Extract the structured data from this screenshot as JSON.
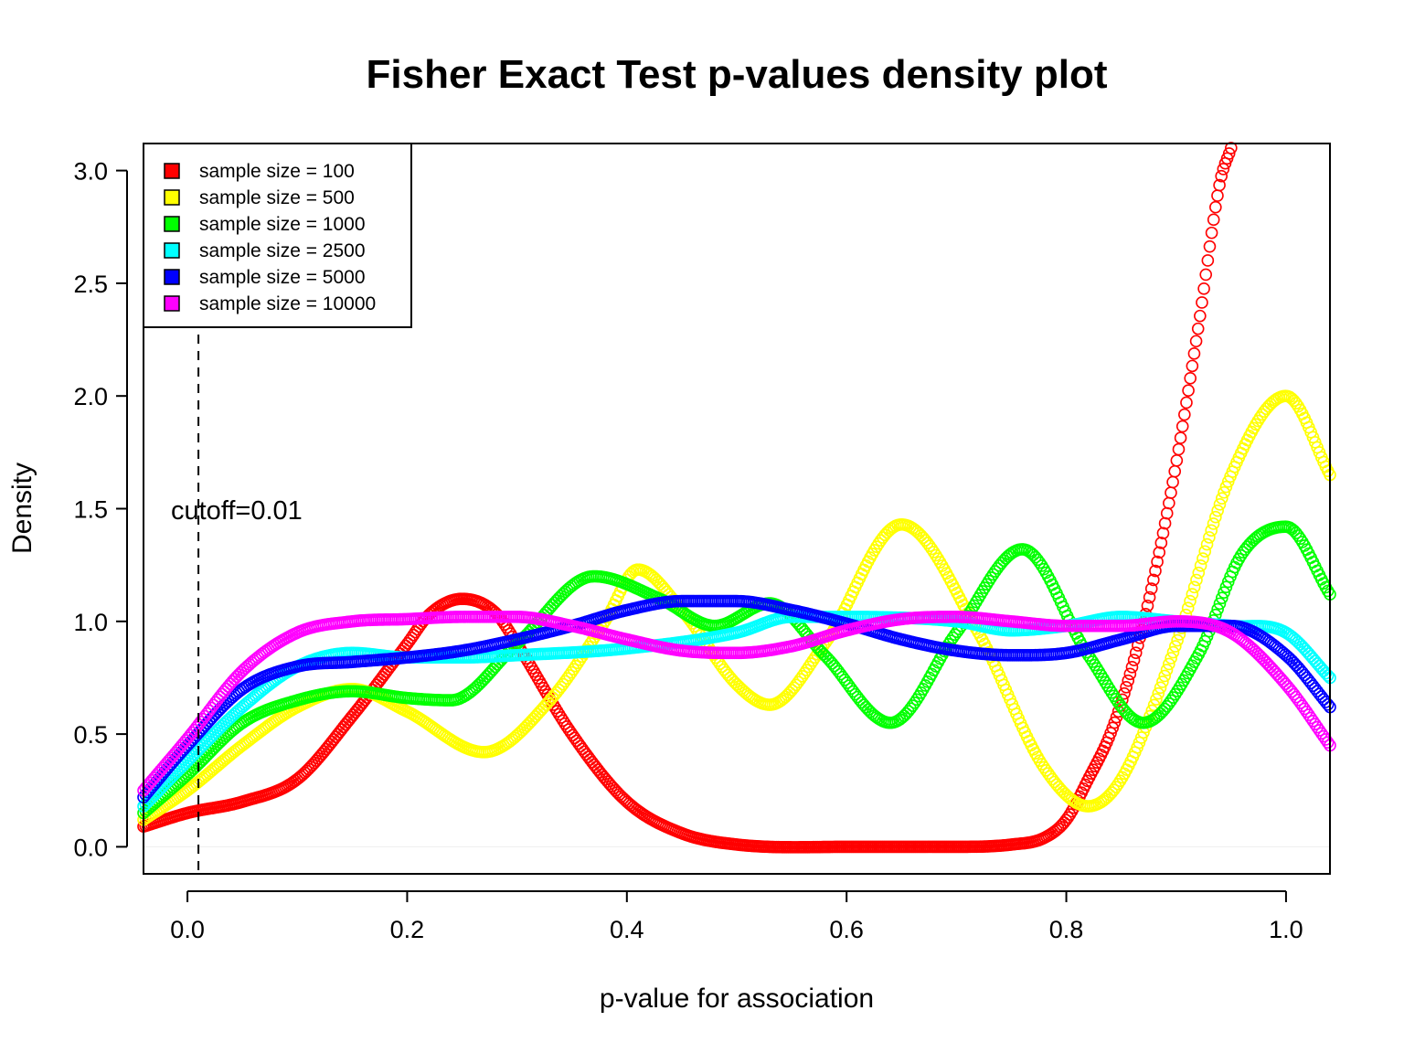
{
  "chart_data": {
    "type": "line",
    "title": "Fisher Exact Test p-values density plot",
    "xlabel": "p-value for association",
    "ylabel": "Density",
    "xlim": [
      -0.04,
      1.04
    ],
    "ylim": [
      -0.12,
      3.12
    ],
    "x_ticks": [
      "0.0",
      "0.2",
      "0.4",
      "0.6",
      "0.8",
      "1.0"
    ],
    "y_ticks": [
      "0.0",
      "0.5",
      "1.0",
      "1.5",
      "2.0",
      "2.5",
      "3.0"
    ],
    "grid": false,
    "legend_position": "top-left",
    "marker": "open-circle",
    "cutoff": {
      "x": 0.01,
      "label": "cutoff=0.01",
      "style": "dashed"
    },
    "series": [
      {
        "name": "sample size = 100",
        "color": "#ff0000",
        "x": [
          -0.04,
          0.0,
          0.05,
          0.1,
          0.15,
          0.2,
          0.22,
          0.25,
          0.28,
          0.3,
          0.35,
          0.4,
          0.45,
          0.5,
          0.6,
          0.7,
          0.75,
          0.78,
          0.8,
          0.82,
          0.84,
          0.86,
          0.88,
          0.9,
          0.92,
          0.94,
          0.95
        ],
        "y": [
          0.09,
          0.15,
          0.2,
          0.3,
          0.58,
          0.9,
          1.03,
          1.1,
          1.04,
          0.9,
          0.5,
          0.2,
          0.06,
          0.01,
          0.0,
          0.0,
          0.01,
          0.04,
          0.12,
          0.3,
          0.5,
          0.8,
          1.2,
          1.7,
          2.3,
          2.95,
          3.1
        ]
      },
      {
        "name": "sample size = 500",
        "color": "#ffff00",
        "x": [
          -0.04,
          0.0,
          0.05,
          0.1,
          0.15,
          0.2,
          0.27,
          0.33,
          0.38,
          0.41,
          0.45,
          0.5,
          0.53,
          0.58,
          0.65,
          0.72,
          0.78,
          0.82,
          0.85,
          0.9,
          0.95,
          1.0,
          1.04
        ],
        "y": [
          0.12,
          0.25,
          0.45,
          0.62,
          0.7,
          0.6,
          0.42,
          0.65,
          1.0,
          1.23,
          1.05,
          0.72,
          0.63,
          0.9,
          1.43,
          0.95,
          0.35,
          0.18,
          0.3,
          0.9,
          1.65,
          2.0,
          1.65
        ]
      },
      {
        "name": "sample size = 1000",
        "color": "#00ff00",
        "x": [
          -0.04,
          0.0,
          0.05,
          0.1,
          0.15,
          0.2,
          0.24,
          0.3,
          0.37,
          0.43,
          0.48,
          0.53,
          0.58,
          0.64,
          0.7,
          0.76,
          0.82,
          0.87,
          0.92,
          0.96,
          1.0,
          1.04
        ],
        "y": [
          0.15,
          0.32,
          0.55,
          0.65,
          0.69,
          0.66,
          0.65,
          0.9,
          1.2,
          1.1,
          0.98,
          1.08,
          0.85,
          0.55,
          0.95,
          1.32,
          0.85,
          0.55,
          0.85,
          1.3,
          1.42,
          1.12
        ]
      },
      {
        "name": "sample size = 2500",
        "color": "#00ffff",
        "x": [
          -0.04,
          0.0,
          0.05,
          0.1,
          0.15,
          0.2,
          0.25,
          0.3,
          0.4,
          0.5,
          0.55,
          0.6,
          0.7,
          0.75,
          0.8,
          0.85,
          0.9,
          0.95,
          1.0,
          1.04
        ],
        "y": [
          0.18,
          0.38,
          0.62,
          0.8,
          0.86,
          0.84,
          0.84,
          0.85,
          0.88,
          0.95,
          1.02,
          1.02,
          1.0,
          0.96,
          0.98,
          1.02,
          1.0,
          0.98,
          0.95,
          0.75
        ]
      },
      {
        "name": "sample size = 5000",
        "color": "#0000ff",
        "x": [
          -0.04,
          0.0,
          0.05,
          0.1,
          0.15,
          0.2,
          0.25,
          0.3,
          0.35,
          0.4,
          0.45,
          0.5,
          0.55,
          0.6,
          0.65,
          0.7,
          0.75,
          0.8,
          0.85,
          0.9,
          0.95,
          1.0,
          1.04
        ],
        "y": [
          0.22,
          0.45,
          0.7,
          0.8,
          0.82,
          0.84,
          0.87,
          0.92,
          0.98,
          1.05,
          1.09,
          1.09,
          1.05,
          0.99,
          0.92,
          0.87,
          0.85,
          0.86,
          0.92,
          0.98,
          0.98,
          0.85,
          0.62
        ]
      },
      {
        "name": "sample size = 10000",
        "color": "#ff00ff",
        "x": [
          -0.04,
          0.0,
          0.05,
          0.1,
          0.15,
          0.2,
          0.25,
          0.3,
          0.35,
          0.4,
          0.45,
          0.5,
          0.55,
          0.6,
          0.65,
          0.7,
          0.75,
          0.8,
          0.85,
          0.9,
          0.95,
          1.0,
          1.04
        ],
        "y": [
          0.25,
          0.48,
          0.78,
          0.95,
          1.0,
          1.01,
          1.02,
          1.02,
          0.98,
          0.92,
          0.87,
          0.86,
          0.89,
          0.96,
          1.01,
          1.02,
          1.0,
          0.98,
          0.98,
          1.0,
          0.95,
          0.72,
          0.45
        ]
      }
    ]
  }
}
